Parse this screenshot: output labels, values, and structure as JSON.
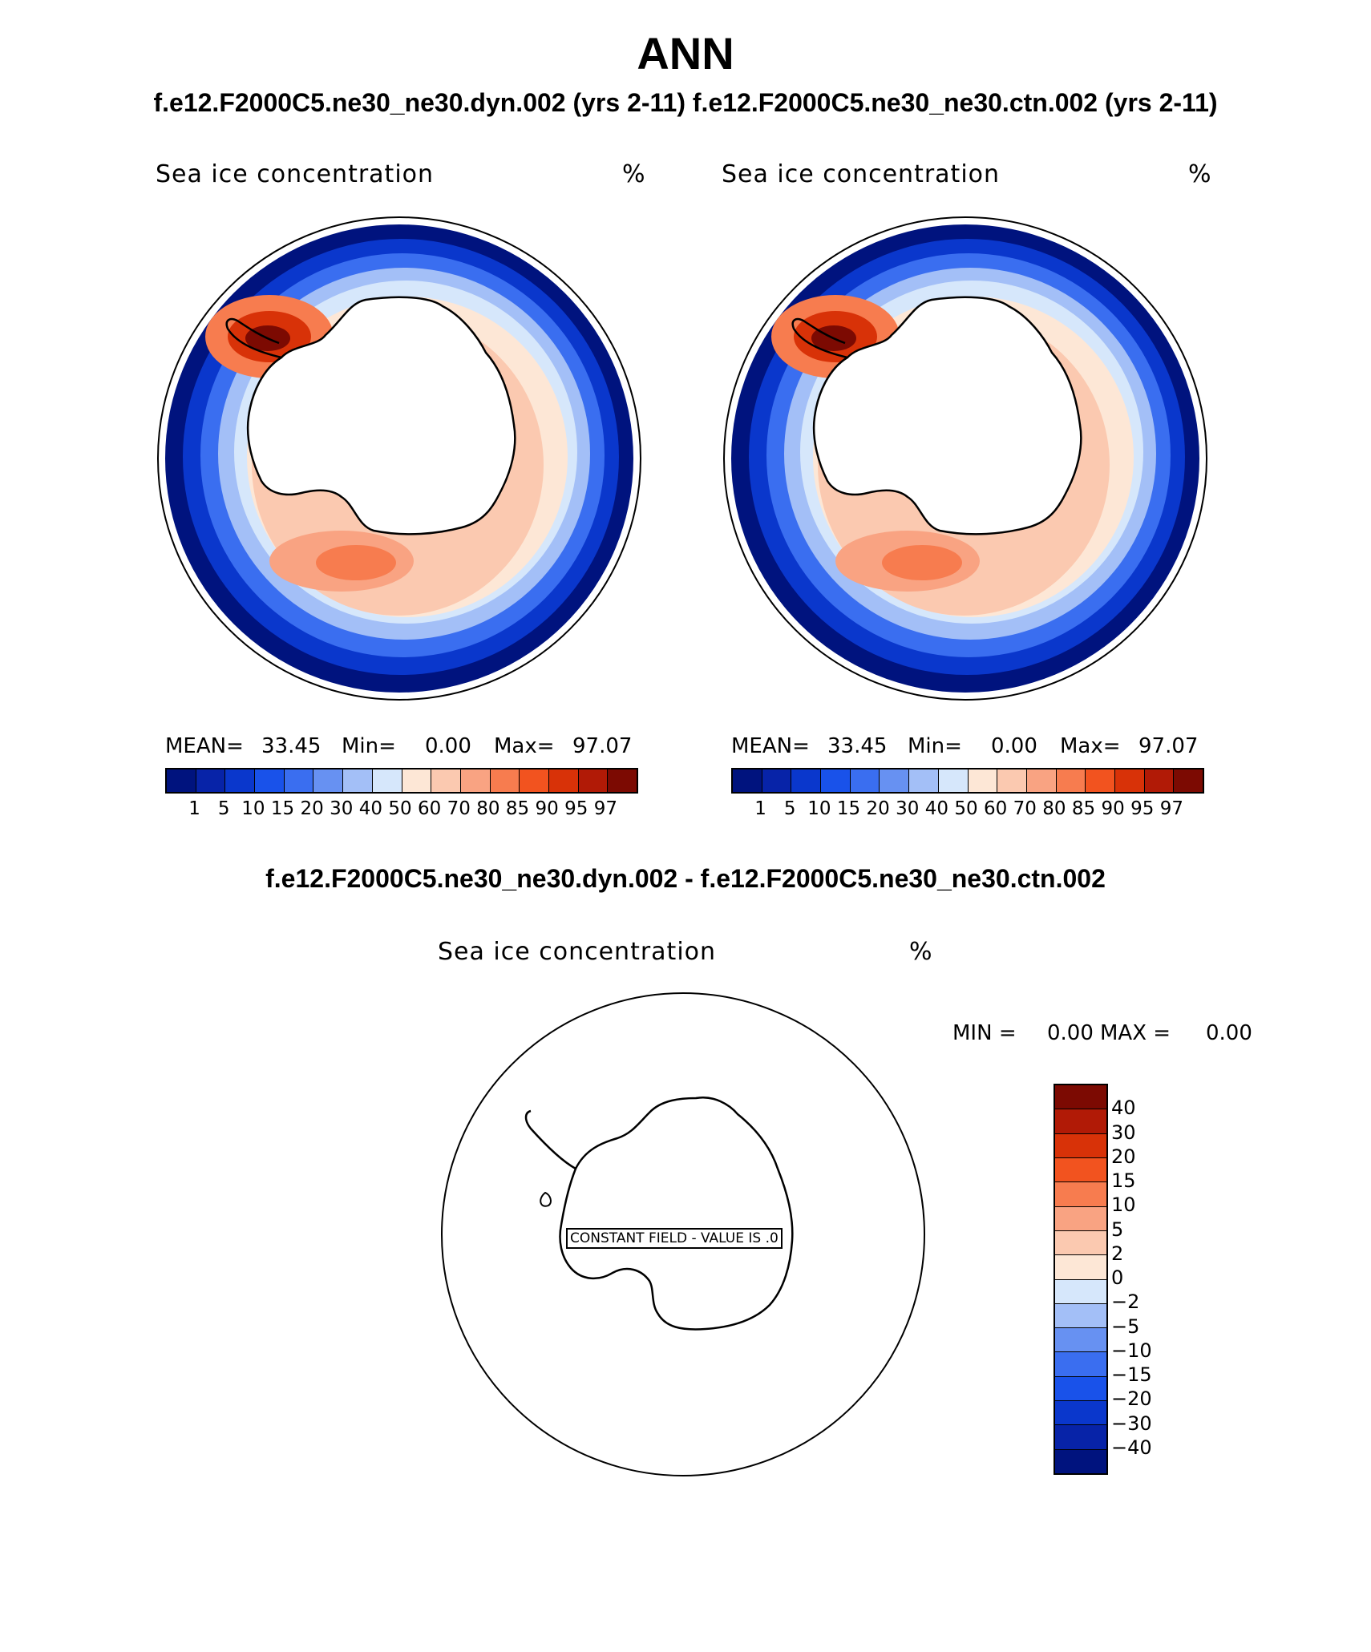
{
  "page": {
    "title": "ANN",
    "subtitle": "f.e12.F2000C5.ne30_ne30.dyn.002 (yrs 2-11)  f.e12.F2000C5.ne30_ne30.ctn.002 (yrs 2-11)",
    "diff_title": "f.e12.F2000C5.ne30_ne30.dyn.002 - f.e12.F2000C5.ne30_ne30.ctn.002"
  },
  "panels": [
    {
      "label": "Sea ice concentration",
      "units": "%",
      "mean_label": "MEAN=",
      "mean": "33.45",
      "min_label": "Min=",
      "min": "0.00",
      "max_label": "Max=",
      "max": "97.07"
    },
    {
      "label": "Sea ice concentration",
      "units": "%",
      "mean_label": "MEAN=",
      "mean": "33.45",
      "min_label": "Min=",
      "min": "0.00",
      "max_label": "Max=",
      "max": "97.07"
    }
  ],
  "diff_panel": {
    "label": "Sea ice concentration",
    "units": "%",
    "min_text": "MIN =",
    "min": "0.00",
    "max_text": "MAX =",
    "max": "0.00",
    "constant_field": "CONSTANT FIELD - VALUE IS .0"
  },
  "colorbar": {
    "levels": [
      "1",
      "5",
      "10",
      "15",
      "20",
      "30",
      "40",
      "50",
      "60",
      "70",
      "80",
      "85",
      "90",
      "95",
      "97"
    ],
    "colors": [
      "#00137e",
      "#0723a8",
      "#0a37cc",
      "#1952ea",
      "#3a6ef0",
      "#6791f2",
      "#a3bff7",
      "#d6e7fb",
      "#fde7d6",
      "#fbc9b0",
      "#f9a382",
      "#f77c4f",
      "#f2531f",
      "#d83208",
      "#b11a06",
      "#7c0a02"
    ]
  },
  "diff_colorbar": {
    "levels": [
      "40",
      "30",
      "20",
      "15",
      "10",
      "5",
      "2",
      "0",
      "−2",
      "−5",
      "−10",
      "−15",
      "−20",
      "−30",
      "−40"
    ],
    "colors": [
      "#7c0a02",
      "#b11a06",
      "#d83208",
      "#f2531f",
      "#f77c4f",
      "#f9a382",
      "#fbc9b0",
      "#fde7d6",
      "#d6e7fb",
      "#a3bff7",
      "#6791f2",
      "#3a6ef0",
      "#1952ea",
      "#0a37cc",
      "#0723a8",
      "#00137e"
    ]
  },
  "chart_data": {
    "type": "heatmap",
    "title": "ANN",
    "variable": "Sea ice concentration",
    "units": "%",
    "projection": "south polar stereographic",
    "panels": [
      {
        "case": "f.e12.F2000C5.ne30_ne30.dyn.002 (yrs 2-11)",
        "mean": 33.45,
        "min": 0.0,
        "max": 97.07,
        "levels": [
          1,
          5,
          10,
          15,
          20,
          30,
          40,
          50,
          60,
          70,
          80,
          85,
          90,
          95,
          97
        ]
      },
      {
        "case": "f.e12.F2000C5.ne30_ne30.ctn.002 (yrs 2-11)",
        "mean": 33.45,
        "min": 0.0,
        "max": 97.07,
        "levels": [
          1,
          5,
          10,
          15,
          20,
          30,
          40,
          50,
          60,
          70,
          80,
          85,
          90,
          95,
          97
        ]
      },
      {
        "case": "f.e12.F2000C5.ne30_ne30.dyn.002 - f.e12.F2000C5.ne30_ne30.ctn.002",
        "min": 0.0,
        "max": 0.0,
        "constant_value": 0.0,
        "levels": [
          -40,
          -30,
          -20,
          -15,
          -10,
          -5,
          -2,
          0,
          2,
          5,
          10,
          15,
          20,
          30,
          40
        ]
      }
    ]
  }
}
